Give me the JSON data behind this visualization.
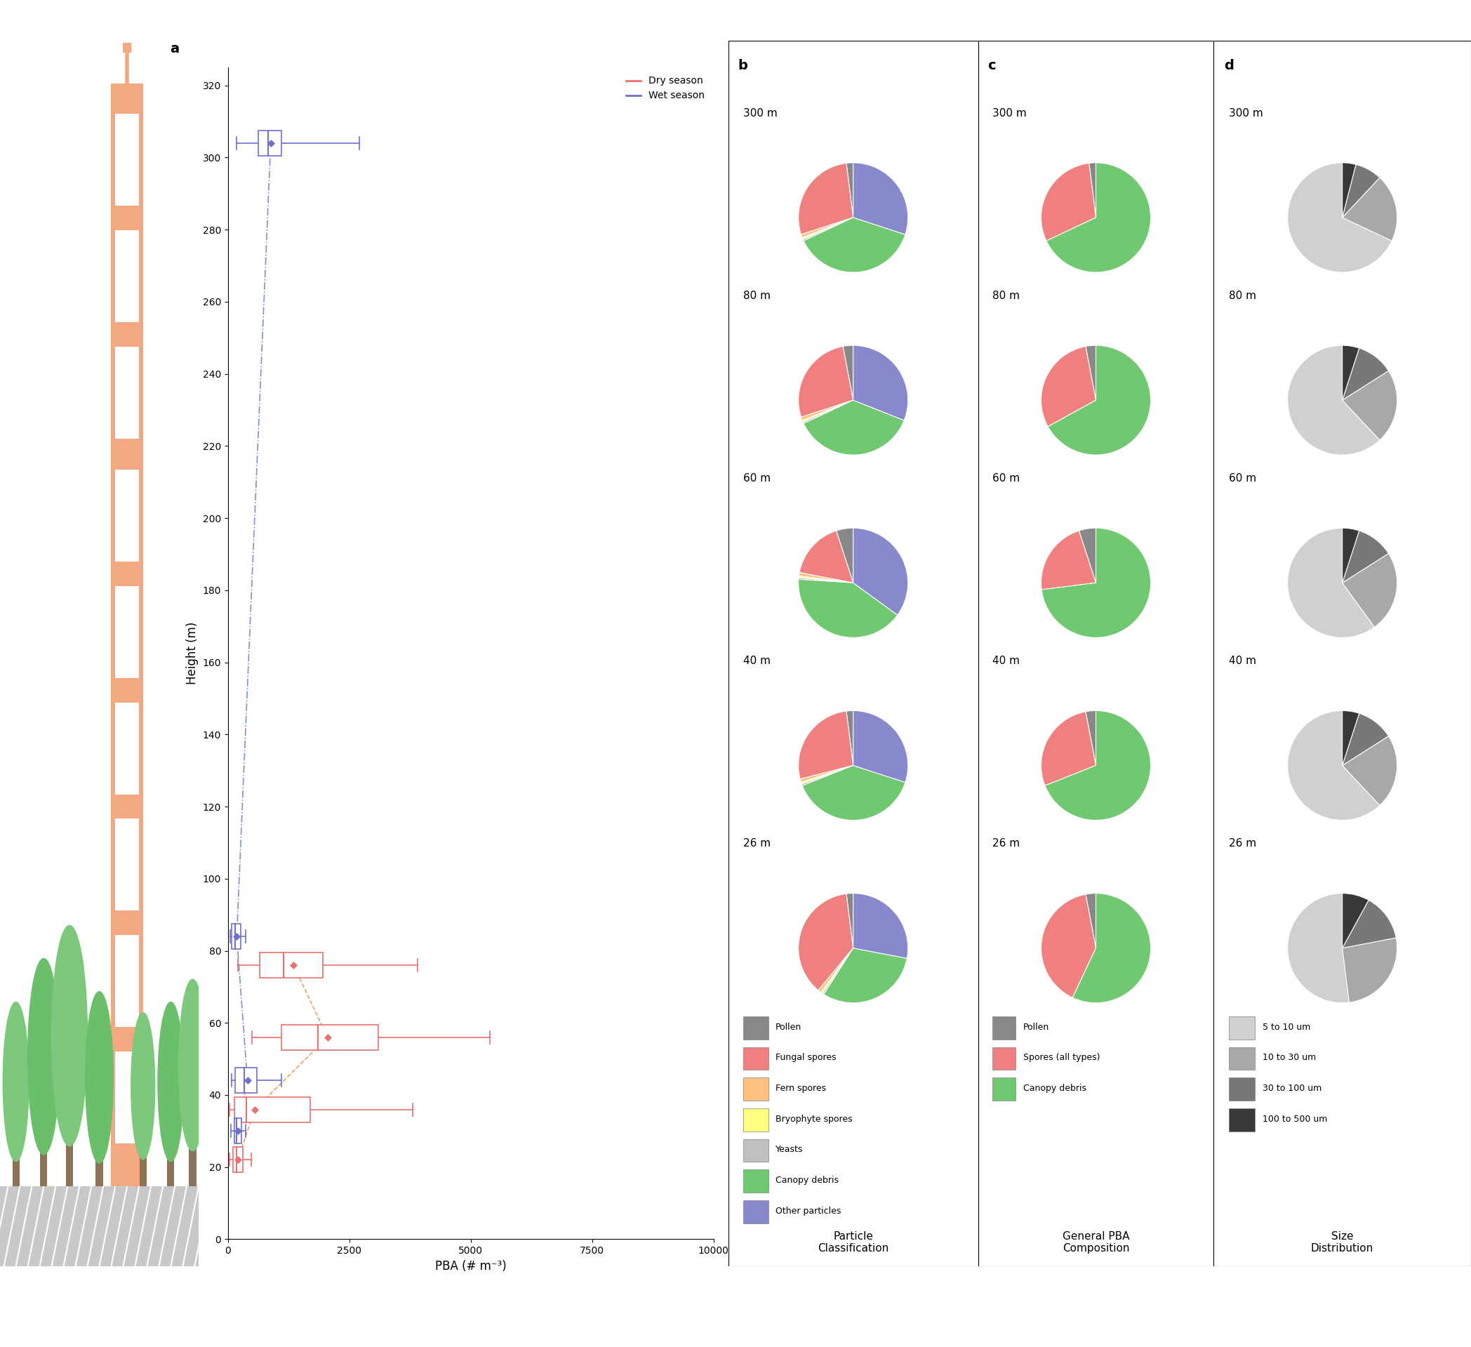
{
  "dry_data": {
    "26": {
      "q1": 100,
      "median": 175,
      "q3": 310,
      "wlo": 30,
      "whi": 480,
      "mean": 200
    },
    "40": {
      "q1": 130,
      "median": 380,
      "q3": 1700,
      "wlo": 30,
      "whi": 3800,
      "mean": 550
    },
    "60": {
      "q1": 1100,
      "median": 1850,
      "q3": 3100,
      "wlo": 500,
      "whi": 5400,
      "mean": 2050
    },
    "80": {
      "q1": 650,
      "median": 1150,
      "q3": 1950,
      "wlo": 200,
      "whi": 3900,
      "mean": 1350
    }
  },
  "wet_data": {
    "26": {
      "q1": 130,
      "median": 180,
      "q3": 270,
      "wlo": 60,
      "whi": 360,
      "mean": 200
    },
    "40": {
      "q1": 150,
      "median": 330,
      "q3": 600,
      "wlo": 80,
      "whi": 1100,
      "mean": 400
    },
    "80": {
      "q1": 80,
      "median": 150,
      "q3": 260,
      "wlo": 40,
      "whi": 360,
      "mean": 180
    },
    "300": {
      "q1": 620,
      "median": 820,
      "q3": 1100,
      "wlo": 180,
      "whi": 2700,
      "mean": 880
    }
  },
  "pie_b_data": {
    "300": [
      2,
      28,
      1,
      0.5,
      0.5,
      38,
      30
    ],
    "80": [
      3,
      27,
      1,
      0.5,
      0.5,
      37,
      31
    ],
    "60": [
      5,
      17,
      1,
      0.5,
      0.5,
      41,
      35
    ],
    "40": [
      2,
      27,
      1,
      0.5,
      0.5,
      39,
      30
    ],
    "26": [
      2,
      37,
      1,
      0.5,
      0.5,
      31,
      28
    ]
  },
  "pie_b_colors": [
    "#888888",
    "#F08080",
    "#FFC080",
    "#FFFF80",
    "#C0C0C0",
    "#70C870",
    "#8888CC"
  ],
  "pie_b_labels": [
    "Pollen",
    "Fungal spores",
    "Fern spores",
    "Bryophyte spores",
    "Yeasts",
    "Canopy debris",
    "Other particles"
  ],
  "pie_c_data": {
    "300": [
      2,
      30,
      68
    ],
    "80": [
      3,
      30,
      67
    ],
    "60": [
      5,
      22,
      73
    ],
    "40": [
      3,
      28,
      69
    ],
    "26": [
      3,
      40,
      57
    ]
  },
  "pie_c_colors": [
    "#888888",
    "#F08080",
    "#70C870"
  ],
  "pie_c_labels": [
    "Pollen",
    "Spores (all types)",
    "Canopy debris"
  ],
  "pie_d_data": {
    "300": [
      68,
      20,
      8,
      4
    ],
    "80": [
      62,
      22,
      11,
      5
    ],
    "60": [
      60,
      24,
      11,
      5
    ],
    "40": [
      62,
      22,
      11,
      5
    ],
    "26": [
      52,
      26,
      14,
      8
    ]
  },
  "pie_d_colors": [
    "#D0D0D0",
    "#A8A8A8",
    "#787878",
    "#383838"
  ],
  "pie_d_labels": [
    "5 to 10 um",
    "10 to 30 um",
    "30 to 100 um",
    "100 to 500 um"
  ],
  "dry_color": "#E87070",
  "wet_color": "#7070C8",
  "dry_line_color": "#E8A060",
  "wet_line_color": "#8090D0",
  "heights_order": [
    "300",
    "80",
    "60",
    "40",
    "26"
  ]
}
